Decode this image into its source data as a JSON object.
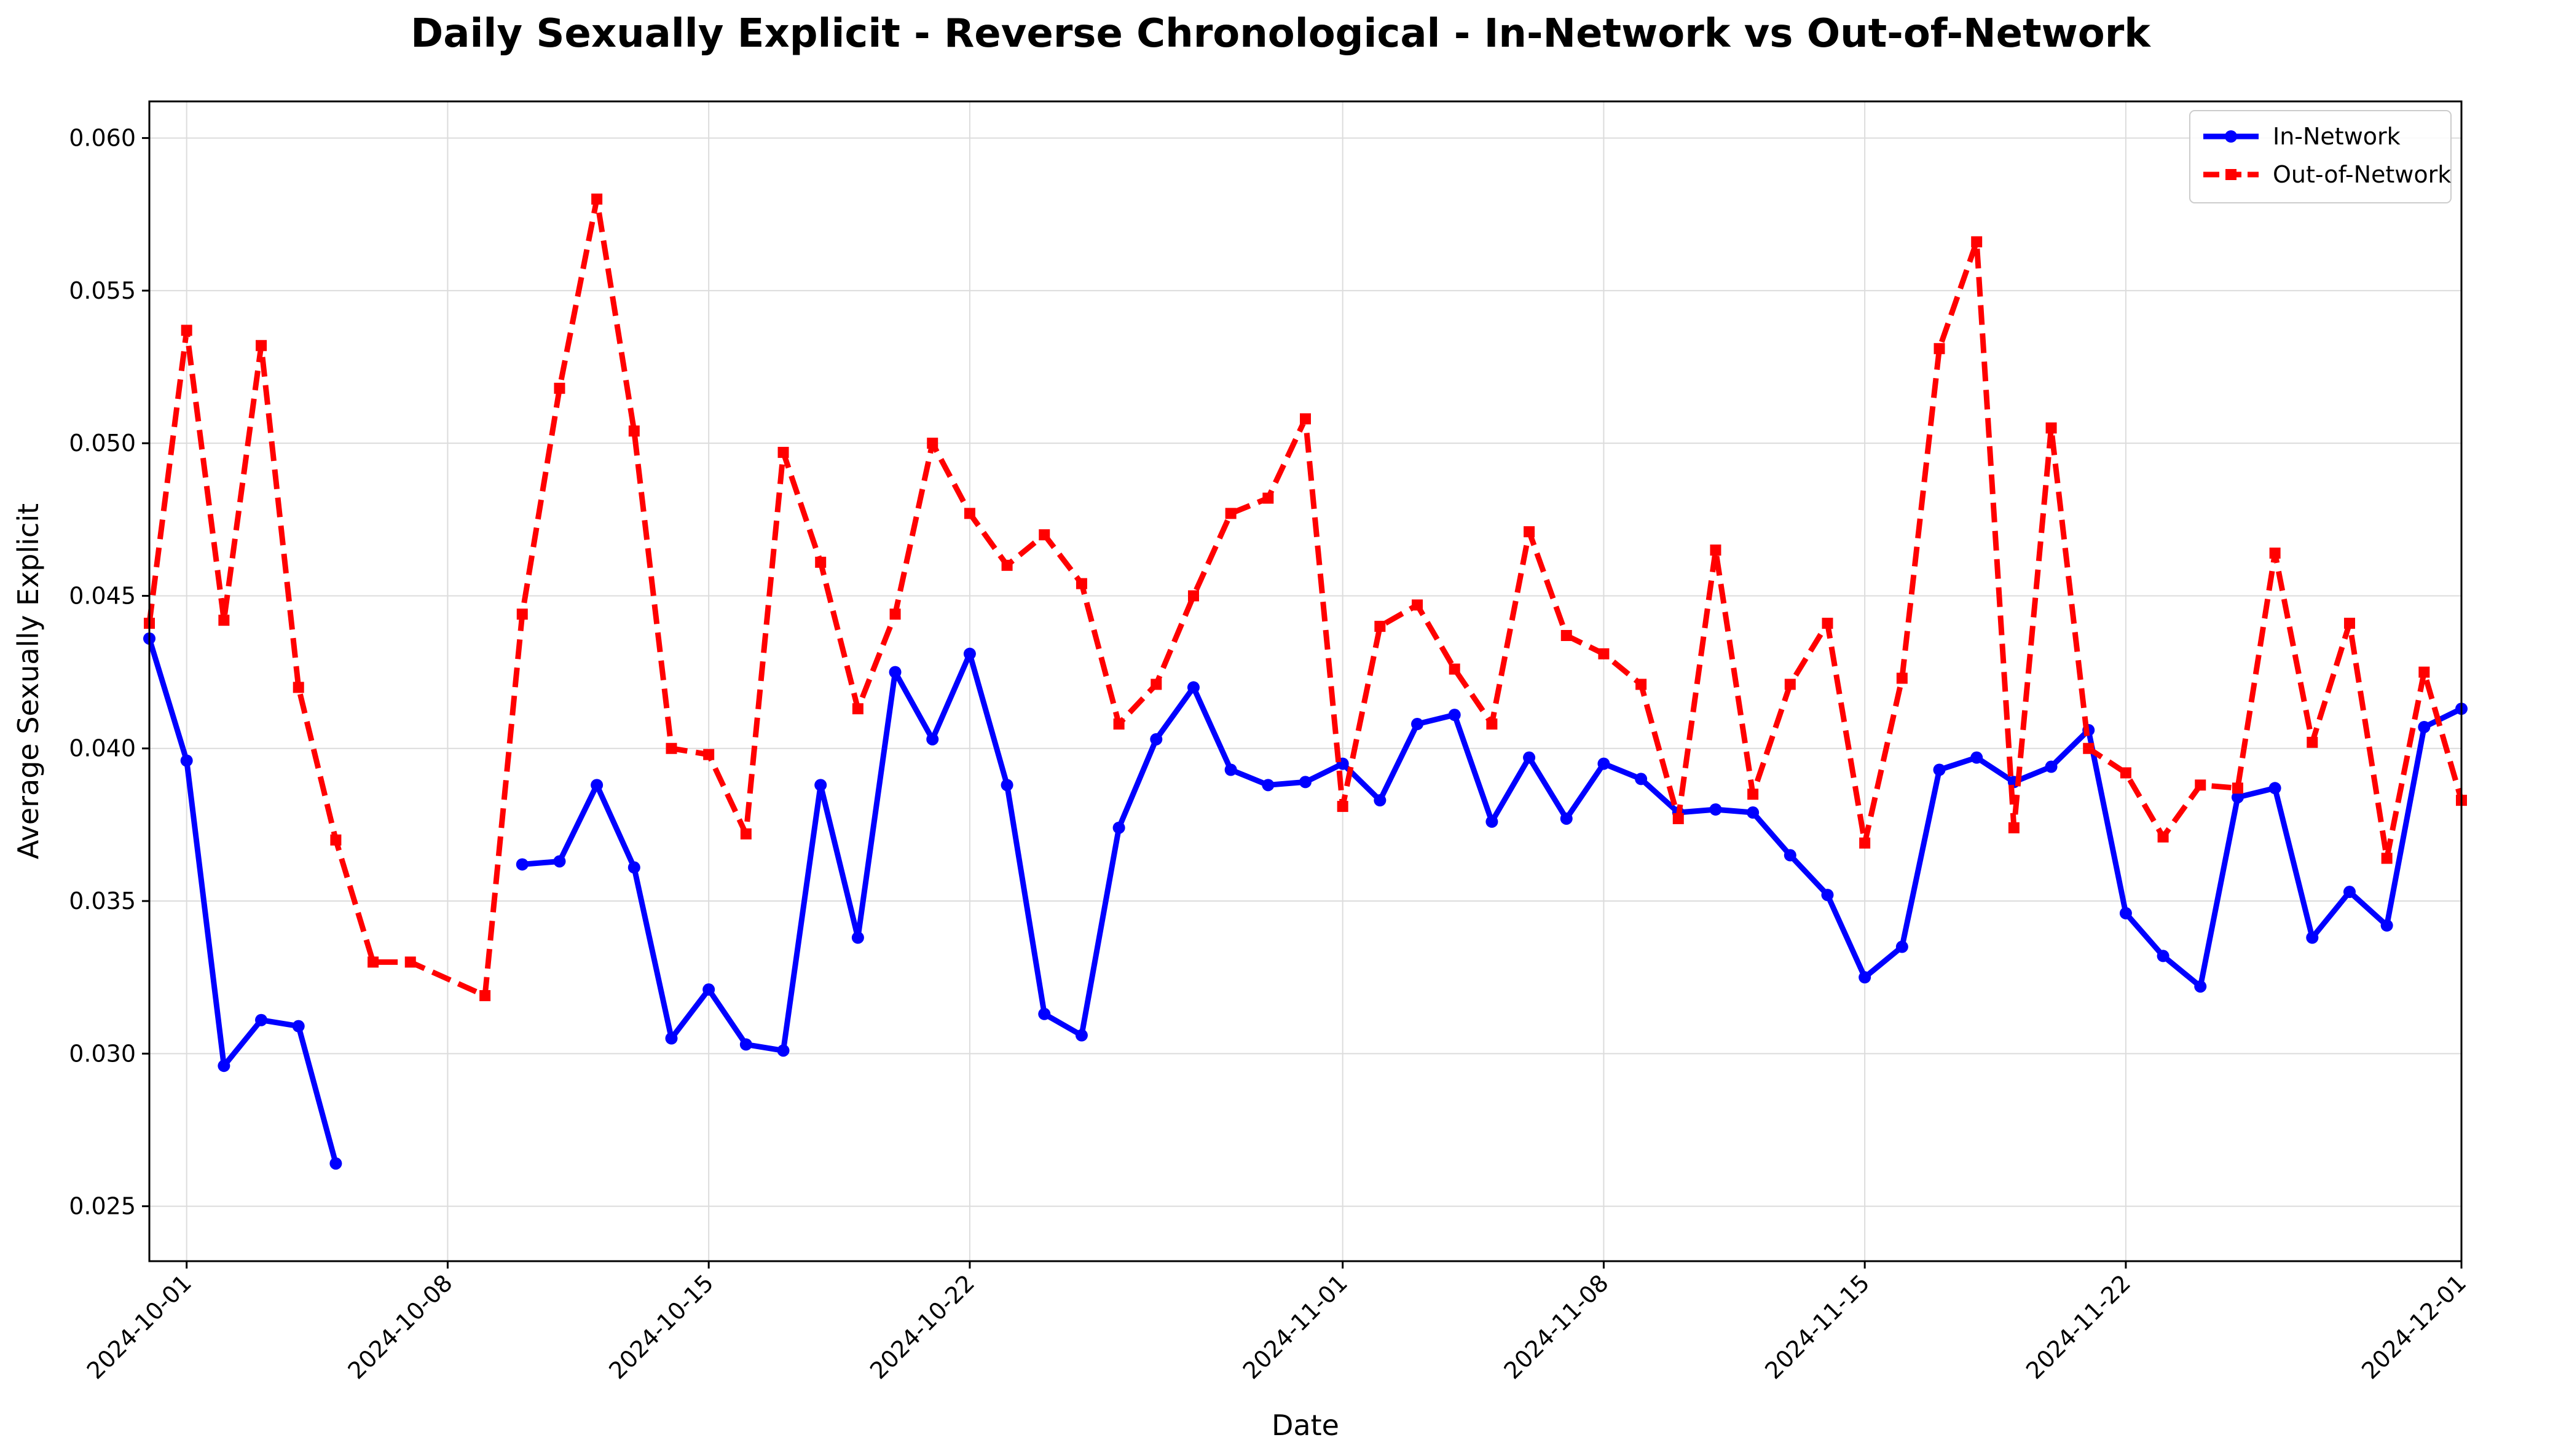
{
  "chart_data": {
    "type": "line",
    "title": "Daily Sexually Explicit - Reverse Chronological - In-Network vs Out-of-Network",
    "xlabel": "Date",
    "ylabel": "Average Sexually Explicit",
    "xlim": [
      "2024-09-30",
      "2024-12-01"
    ],
    "ylim": [
      0.0232,
      0.0612
    ],
    "x_ticks": [
      "2024-10-01",
      "2024-10-08",
      "2024-10-15",
      "2024-10-22",
      "2024-11-01",
      "2024-11-08",
      "2024-11-15",
      "2024-11-22",
      "2024-12-01"
    ],
    "y_ticks": [
      "0.025",
      "0.030",
      "0.035",
      "0.040",
      "0.045",
      "0.050",
      "0.055",
      "0.060"
    ],
    "grid": true,
    "legend_position": "upper right",
    "series": [
      {
        "name": "In-Network",
        "color": "#0000ff",
        "style": "solid",
        "marker": "circle",
        "points": [
          [
            "2024-09-30",
            0.0436
          ],
          [
            "2024-10-01",
            0.0396
          ],
          [
            "2024-10-02",
            0.0296
          ],
          [
            "2024-10-03",
            0.0311
          ],
          [
            "2024-10-04",
            0.0309
          ],
          [
            "2024-10-05",
            0.0264
          ],
          [
            "2024-10-10",
            0.0362
          ],
          [
            "2024-10-11",
            0.0363
          ],
          [
            "2024-10-12",
            0.0388
          ],
          [
            "2024-10-13",
            0.0361
          ],
          [
            "2024-10-14",
            0.0305
          ],
          [
            "2024-10-15",
            0.0321
          ],
          [
            "2024-10-16",
            0.0303
          ],
          [
            "2024-10-17",
            0.0301
          ],
          [
            "2024-10-18",
            0.0388
          ],
          [
            "2024-10-19",
            0.0338
          ],
          [
            "2024-10-20",
            0.0425
          ],
          [
            "2024-10-21",
            0.0403
          ],
          [
            "2024-10-22",
            0.0431
          ],
          [
            "2024-10-23",
            0.0388
          ],
          [
            "2024-10-24",
            0.0313
          ],
          [
            "2024-10-25",
            0.0306
          ],
          [
            "2024-10-26",
            0.0374
          ],
          [
            "2024-10-27",
            0.0403
          ],
          [
            "2024-10-28",
            0.042
          ],
          [
            "2024-10-29",
            0.0393
          ],
          [
            "2024-10-30",
            0.0388
          ],
          [
            "2024-10-31",
            0.0389
          ],
          [
            "2024-11-01",
            0.0395
          ],
          [
            "2024-11-02",
            0.0383
          ],
          [
            "2024-11-03",
            0.0408
          ],
          [
            "2024-11-04",
            0.0411
          ],
          [
            "2024-11-05",
            0.0376
          ],
          [
            "2024-11-06",
            0.0397
          ],
          [
            "2024-11-07",
            0.0377
          ],
          [
            "2024-11-08",
            0.0395
          ],
          [
            "2024-11-09",
            0.039
          ],
          [
            "2024-11-10",
            0.0379
          ],
          [
            "2024-11-11",
            0.038
          ],
          [
            "2024-11-12",
            0.0379
          ],
          [
            "2024-11-13",
            0.0365
          ],
          [
            "2024-11-14",
            0.0352
          ],
          [
            "2024-11-15",
            0.0325
          ],
          [
            "2024-11-16",
            0.0335
          ],
          [
            "2024-11-17",
            0.0393
          ],
          [
            "2024-11-18",
            0.0397
          ],
          [
            "2024-11-19",
            0.0389
          ],
          [
            "2024-11-20",
            0.0394
          ],
          [
            "2024-11-21",
            0.0406
          ],
          [
            "2024-11-22",
            0.0346
          ],
          [
            "2024-11-23",
            0.0332
          ],
          [
            "2024-11-24",
            0.0322
          ],
          [
            "2024-11-25",
            0.0384
          ],
          [
            "2024-11-26",
            0.0387
          ],
          [
            "2024-11-27",
            0.0338
          ],
          [
            "2024-11-28",
            0.0353
          ],
          [
            "2024-11-29",
            0.0342
          ],
          [
            "2024-11-30",
            0.0407
          ],
          [
            "2024-12-01",
            0.0413
          ]
        ]
      },
      {
        "name": "Out-of-Network",
        "color": "#ff0000",
        "style": "dashed",
        "marker": "square",
        "points": [
          [
            "2024-09-30",
            0.0441
          ],
          [
            "2024-10-01",
            0.0537
          ],
          [
            "2024-10-02",
            0.0442
          ],
          [
            "2024-10-03",
            0.0532
          ],
          [
            "2024-10-04",
            0.042
          ],
          [
            "2024-10-05",
            0.037
          ],
          [
            "2024-10-06",
            0.033
          ],
          [
            "2024-10-07",
            0.033
          ],
          [
            "2024-10-09",
            0.0319
          ],
          [
            "2024-10-10",
            0.0444
          ],
          [
            "2024-10-11",
            0.0518
          ],
          [
            "2024-10-12",
            0.058
          ],
          [
            "2024-10-13",
            0.0504
          ],
          [
            "2024-10-14",
            0.04
          ],
          [
            "2024-10-15",
            0.0398
          ],
          [
            "2024-10-16",
            0.0372
          ],
          [
            "2024-10-17",
            0.0497
          ],
          [
            "2024-10-18",
            0.0461
          ],
          [
            "2024-10-19",
            0.0413
          ],
          [
            "2024-10-20",
            0.0444
          ],
          [
            "2024-10-21",
            0.05
          ],
          [
            "2024-10-22",
            0.0477
          ],
          [
            "2024-10-23",
            0.046
          ],
          [
            "2024-10-24",
            0.047
          ],
          [
            "2024-10-25",
            0.0454
          ],
          [
            "2024-10-26",
            0.0408
          ],
          [
            "2024-10-27",
            0.0421
          ],
          [
            "2024-10-28",
            0.045
          ],
          [
            "2024-10-29",
            0.0477
          ],
          [
            "2024-10-30",
            0.0482
          ],
          [
            "2024-10-31",
            0.0508
          ],
          [
            "2024-11-01",
            0.0381
          ],
          [
            "2024-11-02",
            0.044
          ],
          [
            "2024-11-03",
            0.0447
          ],
          [
            "2024-11-04",
            0.0426
          ],
          [
            "2024-11-05",
            0.0408
          ],
          [
            "2024-11-06",
            0.0471
          ],
          [
            "2024-11-07",
            0.0437
          ],
          [
            "2024-11-08",
            0.0431
          ],
          [
            "2024-11-09",
            0.0421
          ],
          [
            "2024-11-10",
            0.0377
          ],
          [
            "2024-11-11",
            0.0465
          ],
          [
            "2024-11-12",
            0.0385
          ],
          [
            "2024-11-13",
            0.0421
          ],
          [
            "2024-11-14",
            0.0441
          ],
          [
            "2024-11-15",
            0.0369
          ],
          [
            "2024-11-16",
            0.0423
          ],
          [
            "2024-11-17",
            0.0531
          ],
          [
            "2024-11-18",
            0.0566
          ],
          [
            "2024-11-19",
            0.0374
          ],
          [
            "2024-11-20",
            0.0505
          ],
          [
            "2024-11-21",
            0.04
          ],
          [
            "2024-11-22",
            0.0392
          ],
          [
            "2024-11-23",
            0.0371
          ],
          [
            "2024-11-24",
            0.0388
          ],
          [
            "2024-11-25",
            0.0387
          ],
          [
            "2024-11-26",
            0.0464
          ],
          [
            "2024-11-27",
            0.0402
          ],
          [
            "2024-11-28",
            0.0441
          ],
          [
            "2024-11-29",
            0.0364
          ],
          [
            "2024-11-30",
            0.0425
          ],
          [
            "2024-12-01",
            0.0383
          ]
        ]
      }
    ]
  }
}
